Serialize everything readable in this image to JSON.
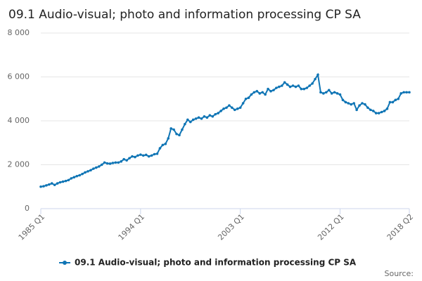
{
  "chart_data": {
    "type": "line",
    "title": "09.1 Audio-visual; photo and information processing CP SA",
    "source": "Source:",
    "categories": [
      "1985 Q1",
      null,
      null,
      null,
      null,
      null,
      null,
      null,
      null,
      null,
      null,
      null,
      null,
      null,
      null,
      null,
      null,
      null,
      null,
      null,
      null,
      null,
      null,
      null,
      null,
      null,
      null,
      null,
      null,
      null,
      null,
      null,
      null,
      null,
      null,
      null,
      "1994 Q1",
      null,
      null,
      null,
      null,
      null,
      null,
      null,
      null,
      null,
      null,
      null,
      null,
      null,
      null,
      null,
      null,
      null,
      null,
      null,
      null,
      null,
      null,
      null,
      null,
      null,
      null,
      null,
      null,
      null,
      null,
      null,
      null,
      null,
      null,
      null,
      "2003 Q1",
      null,
      null,
      null,
      null,
      null,
      null,
      null,
      null,
      null,
      null,
      null,
      null,
      null,
      null,
      null,
      null,
      null,
      null,
      null,
      null,
      null,
      null,
      null,
      null,
      null,
      null,
      null,
      null,
      null,
      null,
      null,
      null,
      null,
      null,
      null,
      "2012 Q1",
      null,
      null,
      null,
      null,
      null,
      null,
      null,
      null,
      null,
      null,
      null,
      null,
      null,
      null,
      null,
      null,
      null,
      null,
      null,
      null,
      null,
      null,
      null,
      null,
      "2018 Q2"
    ],
    "series": [
      {
        "name": "09.1 Audio-visual; photo and information processing CP SA",
        "color": "#0f75b5",
        "values": [
          1000,
          1020,
          1060,
          1100,
          1150,
          1080,
          1150,
          1200,
          1230,
          1260,
          1300,
          1380,
          1430,
          1480,
          1520,
          1580,
          1650,
          1700,
          1750,
          1820,
          1870,
          1920,
          2000,
          2100,
          2060,
          2050,
          2080,
          2100,
          2100,
          2150,
          2250,
          2200,
          2300,
          2380,
          2350,
          2420,
          2460,
          2420,
          2450,
          2380,
          2420,
          2480,
          2500,
          2750,
          2900,
          2950,
          3200,
          3650,
          3600,
          3400,
          3350,
          3600,
          3850,
          4050,
          3950,
          4050,
          4100,
          4150,
          4100,
          4200,
          4150,
          4250,
          4200,
          4300,
          4350,
          4450,
          4550,
          4600,
          4700,
          4600,
          4500,
          4550,
          4600,
          4800,
          5000,
          5050,
          5200,
          5300,
          5350,
          5250,
          5300,
          5200,
          5450,
          5350,
          5400,
          5500,
          5550,
          5600,
          5750,
          5650,
          5550,
          5600,
          5550,
          5600,
          5450,
          5450,
          5500,
          5600,
          5700,
          5900,
          6100,
          5300,
          5250,
          5300,
          5400,
          5250,
          5300,
          5250,
          5200,
          4950,
          4850,
          4800,
          4750,
          4800,
          4500,
          4700,
          4800,
          4750,
          4600,
          4500,
          4450,
          4350,
          4350,
          4400,
          4450,
          4550,
          4850,
          4850,
          4950,
          5000,
          5250,
          5300,
          5300,
          5300
        ]
      }
    ],
    "ylim": [
      0,
      8000
    ],
    "yticks": [
      0,
      {
        "value": 2000,
        "label": "2 000"
      },
      {
        "value": 4000,
        "label": "4 000"
      },
      {
        "value": 6000,
        "label": "6 000"
      },
      {
        "value": 8000,
        "label": "8 000"
      }
    ],
    "grid": true
  }
}
